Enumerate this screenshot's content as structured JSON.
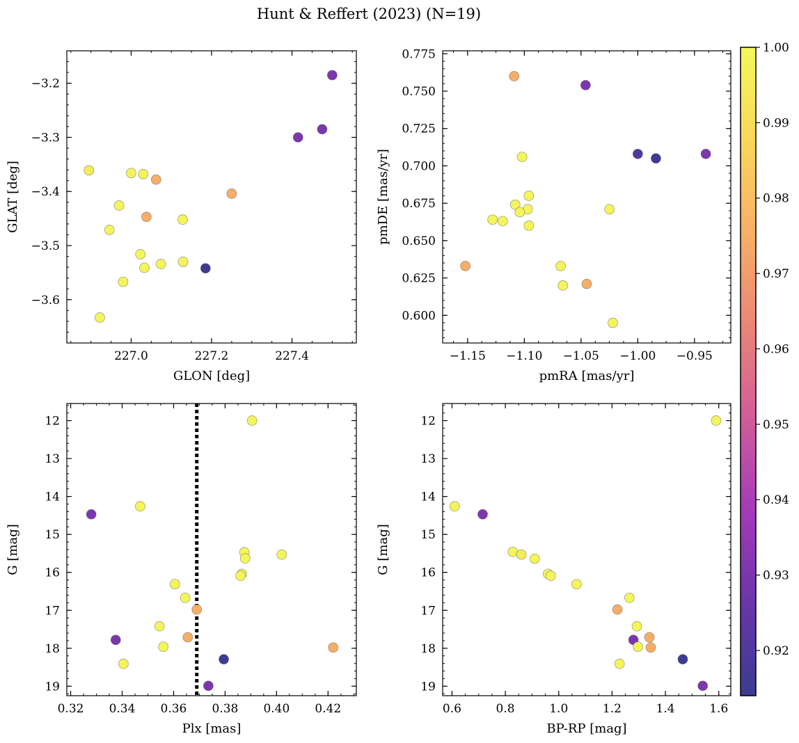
{
  "figure": {
    "title": "Hunt & Reffert (2023) (N=19)"
  },
  "colorbar": {
    "range": [
      0.914,
      1.0
    ],
    "ticks": [
      0.92,
      0.93,
      0.94,
      0.95,
      0.96,
      0.97,
      0.98,
      0.99,
      1.0
    ],
    "tick_labels": [
      "0.92",
      "0.93",
      "0.94",
      "0.95",
      "0.96",
      "0.97",
      "0.98",
      "0.99",
      "1.00"
    ],
    "colormap": "plasma",
    "stops": [
      "#3a3c92",
      "#6a35aa",
      "#a43ab9",
      "#d25c99",
      "#ec8576",
      "#f7b066",
      "#f9d75a",
      "#f4f85a"
    ]
  },
  "chart_data": [
    {
      "type": "scatter",
      "xlabel": "GLON [deg]",
      "ylabel": "GLAT [deg]",
      "xlim": [
        226.84,
        227.56
      ],
      "ylim": [
        -3.68,
        -3.14
      ],
      "xticks": [
        227.0,
        227.2,
        227.4
      ],
      "xtick_labels": [
        "227.0",
        "227.2",
        "227.4"
      ],
      "yticks": [
        -3.2,
        -3.3,
        -3.4,
        -3.5,
        -3.6
      ],
      "ytick_labels": [
        "−3.2",
        "−3.3",
        "−3.4",
        "−3.5",
        "−3.6"
      ],
      "points": [
        {
          "x": 227.5,
          "y": -3.185,
          "c": 0.93
        },
        {
          "x": 227.475,
          "y": -3.285,
          "c": 0.93
        },
        {
          "x": 227.415,
          "y": -3.3,
          "c": 0.93
        },
        {
          "x": 226.895,
          "y": -3.361,
          "c": 0.995
        },
        {
          "x": 227.0,
          "y": -3.366,
          "c": 0.998
        },
        {
          "x": 227.03,
          "y": -3.368,
          "c": 0.998
        },
        {
          "x": 227.062,
          "y": -3.378,
          "c": 0.975
        },
        {
          "x": 227.25,
          "y": -3.404,
          "c": 0.975
        },
        {
          "x": 226.97,
          "y": -3.426,
          "c": 0.999
        },
        {
          "x": 227.038,
          "y": -3.447,
          "c": 0.975
        },
        {
          "x": 227.128,
          "y": -3.452,
          "c": 0.999
        },
        {
          "x": 226.946,
          "y": -3.471,
          "c": 0.999
        },
        {
          "x": 227.023,
          "y": -3.516,
          "c": 0.999
        },
        {
          "x": 227.129,
          "y": -3.53,
          "c": 0.999
        },
        {
          "x": 227.074,
          "y": -3.534,
          "c": 0.999
        },
        {
          "x": 227.033,
          "y": -3.541,
          "c": 0.999
        },
        {
          "x": 227.185,
          "y": -3.542,
          "c": 0.915
        },
        {
          "x": 226.98,
          "y": -3.567,
          "c": 0.999
        },
        {
          "x": 226.922,
          "y": -3.633,
          "c": 0.999
        }
      ]
    },
    {
      "type": "scatter",
      "xlabel": "pmRA [mas/yr]",
      "ylabel": "pmDE [mas/yr]",
      "xlim": [
        -1.172,
        -0.918
      ],
      "ylim": [
        0.5815,
        0.777
      ],
      "xticks": [
        -1.15,
        -1.1,
        -1.05,
        -1.0,
        -0.95
      ],
      "xtick_labels": [
        "−1.15",
        "−1.10",
        "−1.05",
        "−1.00",
        "−0.95"
      ],
      "yticks": [
        0.6,
        0.625,
        0.65,
        0.675,
        0.7,
        0.725,
        0.75,
        0.775
      ],
      "ytick_labels": [
        "0.600",
        "0.625",
        "0.650",
        "0.675",
        "0.700",
        "0.725",
        "0.750",
        "0.775"
      ],
      "points": [
        {
          "x": -1.109,
          "y": 0.76,
          "c": 0.975
        },
        {
          "x": -1.046,
          "y": 0.754,
          "c": 0.93
        },
        {
          "x": -1.0,
          "y": 0.708,
          "c": 0.92
        },
        {
          "x": -0.984,
          "y": 0.705,
          "c": 0.915
        },
        {
          "x": -0.94,
          "y": 0.708,
          "c": 0.93
        },
        {
          "x": -1.102,
          "y": 0.706,
          "c": 0.999
        },
        {
          "x": -1.096,
          "y": 0.68,
          "c": 0.999
        },
        {
          "x": -1.108,
          "y": 0.674,
          "c": 0.999
        },
        {
          "x": -1.097,
          "y": 0.671,
          "c": 0.999
        },
        {
          "x": -1.104,
          "y": 0.669,
          "c": 0.999
        },
        {
          "x": -1.025,
          "y": 0.671,
          "c": 0.999
        },
        {
          "x": -1.128,
          "y": 0.664,
          "c": 0.999
        },
        {
          "x": -1.119,
          "y": 0.663,
          "c": 0.999
        },
        {
          "x": -1.096,
          "y": 0.66,
          "c": 0.999
        },
        {
          "x": -1.152,
          "y": 0.633,
          "c": 0.975
        },
        {
          "x": -1.068,
          "y": 0.633,
          "c": 0.999
        },
        {
          "x": -1.066,
          "y": 0.62,
          "c": 0.999
        },
        {
          "x": -1.045,
          "y": 0.621,
          "c": 0.975
        },
        {
          "x": -1.022,
          "y": 0.595,
          "c": 0.999
        }
      ]
    },
    {
      "type": "scatter",
      "xlabel": "Plx [mas]",
      "ylabel": "G [mag]",
      "xlim": [
        0.3185,
        0.431
      ],
      "ylim": [
        19.25,
        11.55
      ],
      "y_inverted": true,
      "xticks": [
        0.32,
        0.34,
        0.36,
        0.38,
        0.4,
        0.42
      ],
      "xtick_labels": [
        "0.32",
        "0.34",
        "0.36",
        "0.38",
        "0.40",
        "0.42"
      ],
      "yticks": [
        12,
        13,
        14,
        15,
        16,
        17,
        18,
        19
      ],
      "ytick_labels": [
        "12",
        "13",
        "14",
        "15",
        "16",
        "17",
        "18",
        "19"
      ],
      "vline": {
        "x": 0.369,
        "style": "dotted"
      },
      "points": [
        {
          "x": 0.3905,
          "y": 12.0,
          "c": 0.999
        },
        {
          "x": 0.347,
          "y": 14.26,
          "c": 0.999
        },
        {
          "x": 0.328,
          "y": 14.47,
          "c": 0.93
        },
        {
          "x": 0.402,
          "y": 15.53,
          "c": 0.999
        },
        {
          "x": 0.3875,
          "y": 15.47,
          "c": 0.999
        },
        {
          "x": 0.3878,
          "y": 15.63,
          "c": 0.999
        },
        {
          "x": 0.3865,
          "y": 16.04,
          "c": 0.999
        },
        {
          "x": 0.386,
          "y": 16.09,
          "c": 0.999
        },
        {
          "x": 0.3605,
          "y": 16.31,
          "c": 0.999
        },
        {
          "x": 0.3645,
          "y": 16.67,
          "c": 0.999
        },
        {
          "x": 0.369,
          "y": 16.98,
          "c": 0.975
        },
        {
          "x": 0.3545,
          "y": 17.42,
          "c": 0.999
        },
        {
          "x": 0.3655,
          "y": 17.71,
          "c": 0.975
        },
        {
          "x": 0.3375,
          "y": 17.78,
          "c": 0.93
        },
        {
          "x": 0.356,
          "y": 17.96,
          "c": 0.999
        },
        {
          "x": 0.422,
          "y": 17.98,
          "c": 0.975
        },
        {
          "x": 0.3795,
          "y": 18.29,
          "c": 0.915
        },
        {
          "x": 0.3405,
          "y": 18.41,
          "c": 0.999
        },
        {
          "x": 0.3735,
          "y": 18.99,
          "c": 0.93
        }
      ]
    },
    {
      "type": "scatter",
      "xlabel": "BP-RP [mag]",
      "ylabel": "G [mag]",
      "xlim": [
        0.565,
        1.645
      ],
      "ylim": [
        19.25,
        11.55
      ],
      "y_inverted": true,
      "xticks": [
        0.6,
        0.8,
        1.0,
        1.2,
        1.4,
        1.6
      ],
      "xtick_labels": [
        "0.6",
        "0.8",
        "1.0",
        "1.2",
        "1.4",
        "1.6"
      ],
      "yticks": [
        12,
        13,
        14,
        15,
        16,
        17,
        18,
        19
      ],
      "ytick_labels": [
        "12",
        "13",
        "14",
        "15",
        "16",
        "17",
        "18",
        "19"
      ],
      "points": [
        {
          "x": 1.59,
          "y": 12.0,
          "c": 0.999
        },
        {
          "x": 0.61,
          "y": 14.26,
          "c": 0.999
        },
        {
          "x": 0.715,
          "y": 14.47,
          "c": 0.93
        },
        {
          "x": 0.828,
          "y": 15.46,
          "c": 0.999
        },
        {
          "x": 0.86,
          "y": 15.53,
          "c": 0.995
        },
        {
          "x": 0.91,
          "y": 15.64,
          "c": 0.999
        },
        {
          "x": 0.96,
          "y": 16.04,
          "c": 0.999
        },
        {
          "x": 0.97,
          "y": 16.09,
          "c": 0.999
        },
        {
          "x": 1.067,
          "y": 16.31,
          "c": 0.999
        },
        {
          "x": 1.265,
          "y": 16.67,
          "c": 0.999
        },
        {
          "x": 1.22,
          "y": 16.98,
          "c": 0.975
        },
        {
          "x": 1.293,
          "y": 17.42,
          "c": 0.999
        },
        {
          "x": 1.34,
          "y": 17.71,
          "c": 0.975
        },
        {
          "x": 1.28,
          "y": 17.78,
          "c": 0.93
        },
        {
          "x": 1.297,
          "y": 17.96,
          "c": 0.999
        },
        {
          "x": 1.345,
          "y": 17.98,
          "c": 0.975
        },
        {
          "x": 1.465,
          "y": 18.29,
          "c": 0.915
        },
        {
          "x": 1.228,
          "y": 18.41,
          "c": 0.999
        },
        {
          "x": 1.54,
          "y": 18.99,
          "c": 0.93
        }
      ]
    }
  ]
}
